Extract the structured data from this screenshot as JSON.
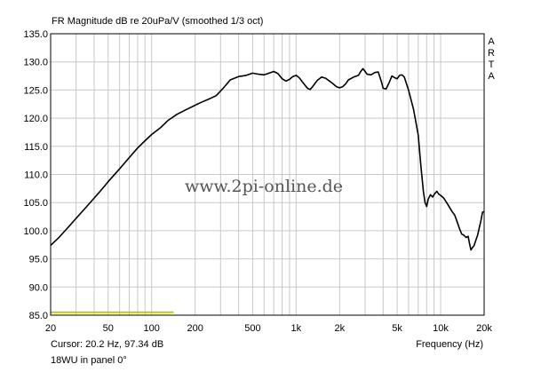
{
  "chart_data": {
    "type": "line",
    "title": "FR Magnitude dB re 20uPa/V (smoothed 1/3 oct)",
    "xlabel": "Frequency (Hz)",
    "ylabel": "",
    "xscale": "log",
    "xlim": [
      20,
      20000
    ],
    "ylim": [
      85,
      135
    ],
    "grid": true,
    "x_ticks": [
      {
        "value": 20,
        "label": "20"
      },
      {
        "value": 50,
        "label": "50"
      },
      {
        "value": 100,
        "label": "100"
      },
      {
        "value": 200,
        "label": "200"
      },
      {
        "value": 500,
        "label": "500"
      },
      {
        "value": 1000,
        "label": "1k"
      },
      {
        "value": 2000,
        "label": "2k"
      },
      {
        "value": 5000,
        "label": "5k"
      },
      {
        "value": 10000,
        "label": "10k"
      },
      {
        "value": 20000,
        "label": "20k"
      }
    ],
    "y_ticks": [
      135,
      130,
      125,
      120,
      115,
      110,
      105,
      100,
      95,
      90,
      85
    ],
    "y_tick_labels": [
      "135.0",
      "130.0",
      "125.0",
      "120.0",
      "115.0",
      "110.0",
      "105.0",
      "100.0",
      "95.0",
      "90.0",
      "85.0"
    ],
    "series": [
      {
        "color": "#000000",
        "points": [
          [
            20,
            97.4
          ],
          [
            23,
            98.9
          ],
          [
            26,
            100.4
          ],
          [
            30,
            102.2
          ],
          [
            35,
            104.1
          ],
          [
            40,
            105.8
          ],
          [
            45,
            107.3
          ],
          [
            50,
            108.7
          ],
          [
            60,
            111.0
          ],
          [
            70,
            113.0
          ],
          [
            80,
            114.7
          ],
          [
            90,
            116.0
          ],
          [
            100,
            117.1
          ],
          [
            115,
            118.3
          ],
          [
            130,
            119.6
          ],
          [
            150,
            120.7
          ],
          [
            170,
            121.4
          ],
          [
            200,
            122.3
          ],
          [
            220,
            122.8
          ],
          [
            250,
            123.4
          ],
          [
            280,
            124.0
          ],
          [
            310,
            125.2
          ],
          [
            350,
            126.8
          ],
          [
            400,
            127.4
          ],
          [
            450,
            127.6
          ],
          [
            500,
            128.0
          ],
          [
            550,
            127.8
          ],
          [
            600,
            127.7
          ],
          [
            650,
            128.0
          ],
          [
            700,
            128.3
          ],
          [
            750,
            127.9
          ],
          [
            800,
            127.0
          ],
          [
            850,
            126.6
          ],
          [
            900,
            126.9
          ],
          [
            950,
            127.4
          ],
          [
            1000,
            127.6
          ],
          [
            1050,
            127.2
          ],
          [
            1100,
            126.5
          ],
          [
            1150,
            125.9
          ],
          [
            1200,
            125.3
          ],
          [
            1250,
            125.1
          ],
          [
            1300,
            125.6
          ],
          [
            1400,
            126.7
          ],
          [
            1500,
            127.3
          ],
          [
            1600,
            127.1
          ],
          [
            1700,
            126.6
          ],
          [
            1800,
            126.1
          ],
          [
            1900,
            125.6
          ],
          [
            2000,
            125.4
          ],
          [
            2100,
            125.6
          ],
          [
            2200,
            126.1
          ],
          [
            2300,
            126.8
          ],
          [
            2500,
            127.3
          ],
          [
            2700,
            127.6
          ],
          [
            2800,
            128.3
          ],
          [
            2900,
            128.8
          ],
          [
            3000,
            128.3
          ],
          [
            3100,
            127.8
          ],
          [
            3300,
            127.7
          ],
          [
            3500,
            128.1
          ],
          [
            3700,
            128.2
          ],
          [
            3900,
            126.4
          ],
          [
            4000,
            125.3
          ],
          [
            4200,
            125.2
          ],
          [
            4400,
            126.3
          ],
          [
            4600,
            127.5
          ],
          [
            4800,
            127.2
          ],
          [
            5000,
            127.0
          ],
          [
            5200,
            127.6
          ],
          [
            5400,
            127.7
          ],
          [
            5600,
            127.3
          ],
          [
            6000,
            125.0
          ],
          [
            6500,
            121.5
          ],
          [
            7000,
            117.0
          ],
          [
            7300,
            111.5
          ],
          [
            7600,
            107.0
          ],
          [
            7800,
            105.0
          ],
          [
            8000,
            104.3
          ],
          [
            8200,
            105.6
          ],
          [
            8500,
            106.4
          ],
          [
            8800,
            106.0
          ],
          [
            9100,
            106.6
          ],
          [
            9400,
            107.0
          ],
          [
            9700,
            106.5
          ],
          [
            10000,
            106.3
          ],
          [
            10500,
            105.8
          ],
          [
            11000,
            105.0
          ],
          [
            12000,
            103.4
          ],
          [
            12500,
            102.8
          ],
          [
            13000,
            101.6
          ],
          [
            13500,
            100.4
          ],
          [
            14000,
            99.4
          ],
          [
            14500,
            99.2
          ],
          [
            15000,
            98.8
          ],
          [
            15500,
            99.0
          ],
          [
            15800,
            97.9
          ],
          [
            16200,
            96.6
          ],
          [
            16600,
            97.0
          ],
          [
            17000,
            97.3
          ],
          [
            17500,
            98.3
          ],
          [
            18000,
            99.2
          ],
          [
            18500,
            100.5
          ],
          [
            19000,
            101.8
          ],
          [
            19500,
            103.3
          ],
          [
            20000,
            103.4
          ]
        ]
      },
      {
        "color": "#c8c800",
        "points": [
          [
            20,
            85.5
          ],
          [
            142,
            85.5
          ]
        ]
      }
    ],
    "side_label": "ARTA",
    "watermark": "www.2pi-online.de"
  },
  "cursor_readout": "Cursor: 20.2 Hz, 97.34 dB",
  "panel_info": "18WU in panel 0°"
}
